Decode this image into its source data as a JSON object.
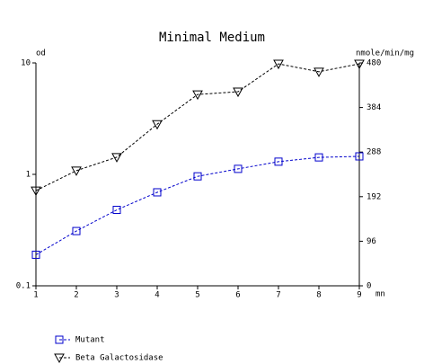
{
  "chart_data": {
    "type": "line",
    "title": "Minimal Medium",
    "x": [
      1,
      2,
      3,
      4,
      5,
      6,
      7,
      8,
      9
    ],
    "xlim": [
      1,
      9
    ],
    "xticks": [
      1,
      2,
      3,
      4,
      5,
      6,
      7,
      8,
      9
    ],
    "x_label": "mn",
    "ylim": [
      0.1,
      10
    ],
    "yticks": [
      0.1,
      1,
      10
    ],
    "y_log": true,
    "y_label": "od",
    "y2lim": [
      0,
      480
    ],
    "y2ticks": [
      0,
      96,
      192,
      288,
      384,
      480
    ],
    "y2_label": "nmole/min/mg",
    "line_style": "dashed",
    "legend": "bottom-left",
    "series": [
      {
        "name": "Mutant",
        "color": "#0000cc",
        "marker": "square",
        "axis": "y",
        "values": [
          0.19,
          0.31,
          0.48,
          0.69,
          0.96,
          1.12,
          1.3,
          1.42,
          1.45
        ]
      },
      {
        "name": "Beta Galactosidase",
        "color": "#000000",
        "marker": "triangle-down",
        "axis": "y2",
        "values": [
          205,
          248,
          277,
          348,
          412,
          418,
          478,
          461,
          478
        ]
      }
    ]
  }
}
